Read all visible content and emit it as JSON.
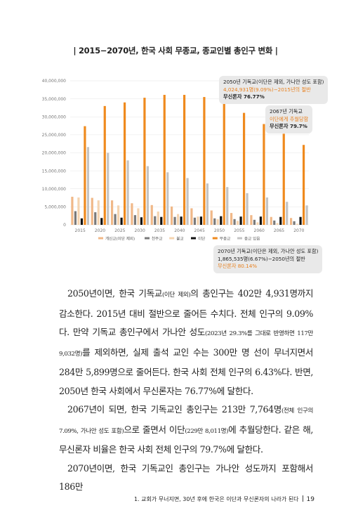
{
  "title": "| 2015−2070년, 한국 사회 무종교, 종교인별 총인구 변화 |",
  "chart_data": {
    "type": "bar",
    "categories": [
      "2015",
      "2020",
      "2025",
      "2030",
      "2035",
      "2040",
      "2045",
      "2050",
      "2055",
      "2060",
      "2065",
      "2070"
    ],
    "yticks": [
      "0",
      "5,000,000",
      "10,000,000",
      "15,000,000",
      "20,000,000",
      "25,000,000",
      "30,000,000",
      "35,000,000",
      "40,000,000"
    ],
    "ylim": [
      0,
      40000000
    ],
    "series": [
      {
        "name": "개신교(이단 제외)",
        "color": "#f0b888",
        "values": [
          7800000,
          7500000,
          6800000,
          6000000,
          5500000,
          5100000,
          4600000,
          4000000,
          3300000,
          2700000,
          2200000,
          1900000
        ]
      },
      {
        "name": "천주교",
        "color": "#7a7a7a",
        "values": [
          3800000,
          3500000,
          3000000,
          2700000,
          2400000,
          2200000,
          2000000,
          1800000,
          1600000,
          1400000,
          1200000,
          1000000
        ]
      },
      {
        "name": "불교",
        "color": "#f5d4b0",
        "values": [
          7600000,
          6800000,
          5400000,
          4600000,
          3700000,
          3000000,
          2300000,
          1600000,
          1100000,
          700000,
          500000,
          300000
        ]
      },
      {
        "name": "이단",
        "color": "#111111",
        "values": [
          1800000,
          1900000,
          2000000,
          2100000,
          2200000,
          2300000,
          2300000,
          2400000,
          2300000,
          2300000,
          2200000,
          2200000
        ]
      },
      {
        "name": "무종교",
        "color": "#ef8a1e",
        "values": [
          27400000,
          33000000,
          34000000,
          35300000,
          36100000,
          36100000,
          35500000,
          33800000,
          31100000,
          28000000,
          25300000,
          22200000
        ]
      },
      {
        "name": "종교 있음",
        "color": "#c4c4c4",
        "values": [
          21600000,
          20000000,
          17900000,
          16300000,
          14600000,
          13000000,
          11500000,
          10500000,
          8800000,
          7600000,
          6400000,
          5400000
        ]
      }
    ]
  },
  "callouts": [
    {
      "line1": "2050년 기독교(이단은 제외, 가나안 성도 포함)",
      "line2": "4,024,931명(9.09%)−2015년의 절반",
      "line3": "무신론자 76.77%"
    },
    {
      "line1": "2067년 기독교",
      "line2": "이단에게 추월당함",
      "line3": "무신론자 79.7%"
    },
    {
      "line1": "2070년 기독교(이단은 제외, 가나안 성도 포함)",
      "line2": "1,865,535명(6.67%)−2050년의 절반",
      "line3": "무신론자 80.14%"
    }
  ],
  "body": {
    "p1a": "2050년이면, 한국 기독교",
    "p1s1": "(이단 제외)",
    "p1b": "의 총인구는 402만 4,931명까지 감소한다. 2015년 대비 절반으로 줄어든 수치다. 전체 인구의 9.09%다. 만약 기독교 총인구에서 가나안 성도",
    "p1s2": "(2023년 29.3%를 그대로 반영하면 117만 9,032명)",
    "p1c": "를 제외하면, 실제 출석 교인 수는 300만 명 선이 무너지면서 284만 5,899명으로 줄어든다. 한국 사회 전체 인구의 6.43%다. 반면, 2050년 한국 사회에서 무신론자는 76.77%에 달한다.",
    "p2a": "2067년이 되면, 한국 기독교인 총인구는 213만 7,764명",
    "p2s1": "(전체 인구의 7.09%, 가나안 성도 포함)",
    "p2b": "으로 줄면서 이단",
    "p2s2": "(229만 8,011명)",
    "p2c": "에 추월당한다. 같은 해, 무신론자 비율은 한국 사회 전체 인구의 79.7%에 달한다.",
    "p3": "2070년이면, 한국 기독교인 총인구는 가나안 성도까지 포함해서 186만"
  },
  "footer": {
    "chapter": "1. 교회가 무너지면, 30년 후에 한국은 이단과 무신론자의 나라가 된다",
    "page": "19"
  }
}
